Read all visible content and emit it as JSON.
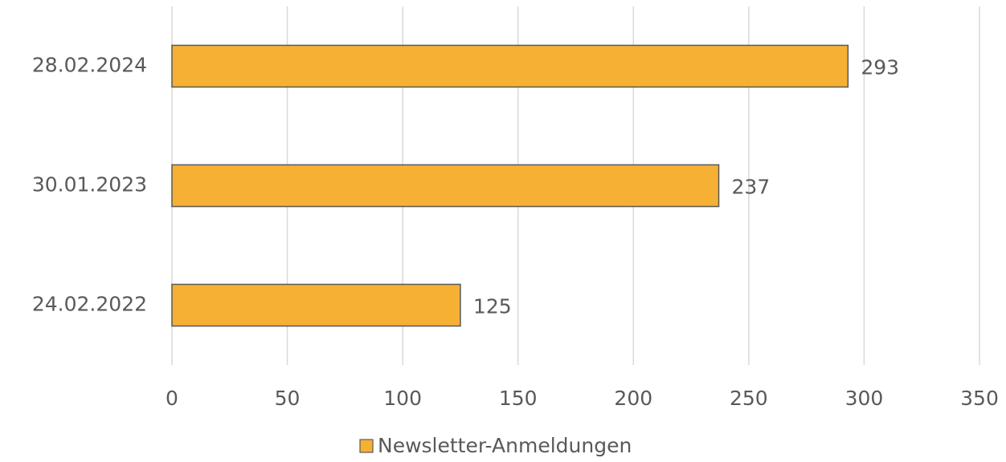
{
  "chart_data": {
    "type": "hbar",
    "categories": [
      "24.02.2022",
      "30.01.2023",
      "28.02.2024"
    ],
    "series": [
      {
        "name": "Newsletter-Anmeldungen",
        "color": "#f6b034",
        "values": [
          125,
          237,
          293
        ]
      }
    ],
    "xlim": [
      0,
      350
    ],
    "xticks": [
      0,
      50,
      100,
      150,
      200,
      250,
      300,
      350
    ],
    "grid": true,
    "legend": "bottom"
  }
}
